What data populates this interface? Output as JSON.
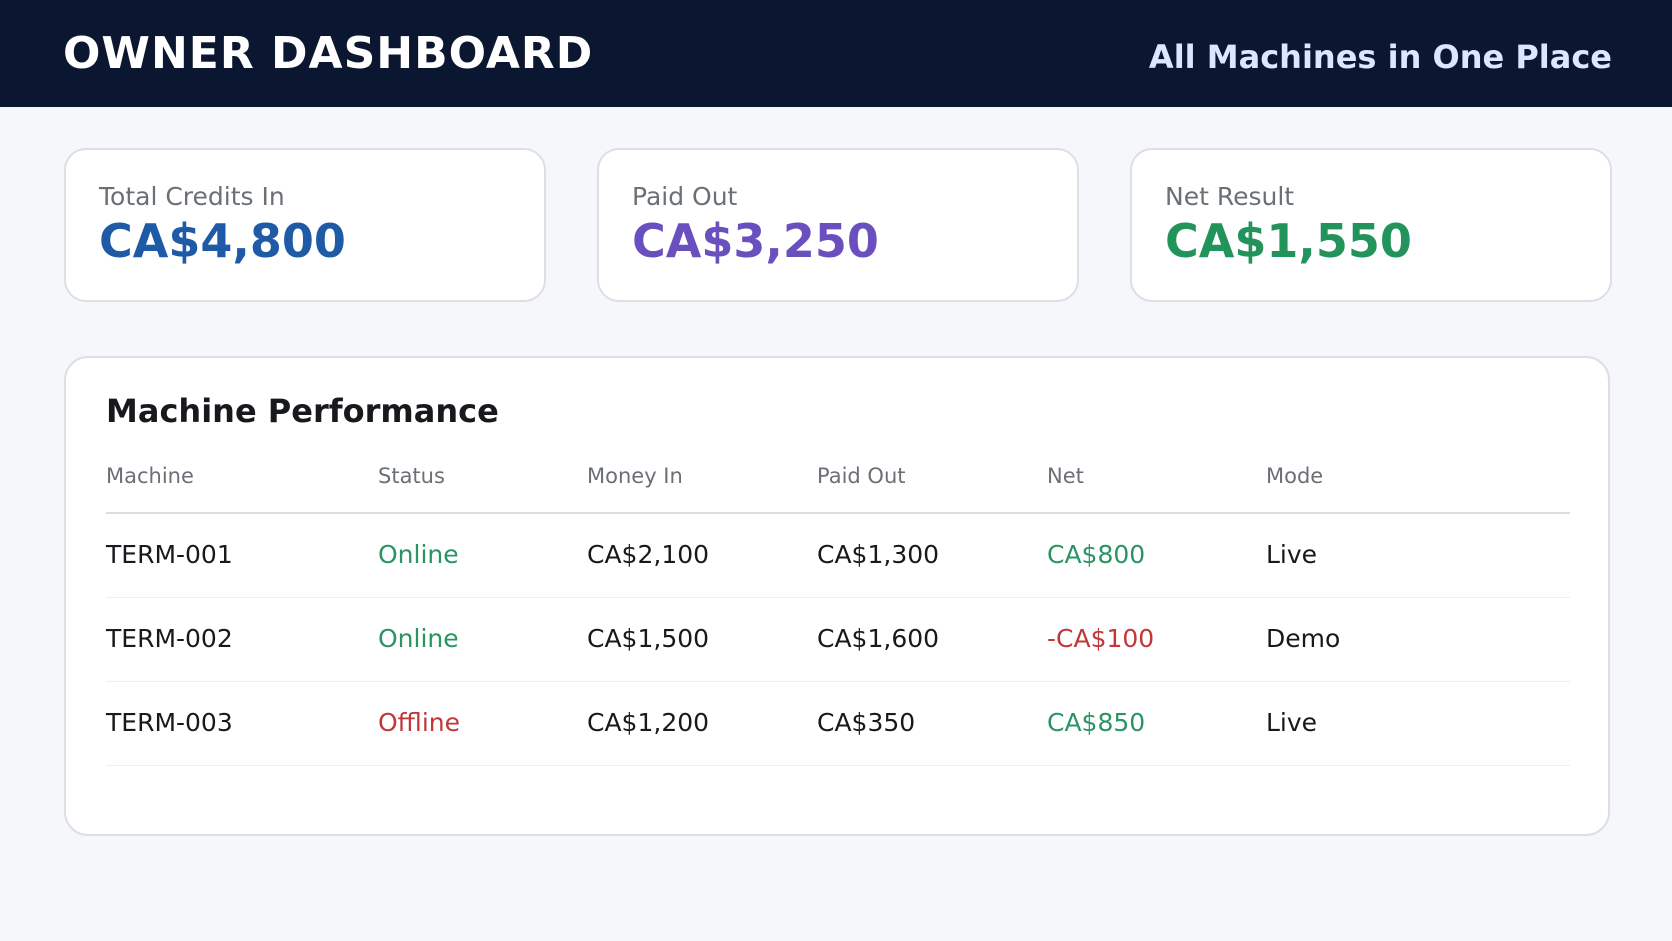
{
  "header": {
    "title": "OWNER DASHBOARD",
    "subtitle": "All Machines in One Place"
  },
  "stats": [
    {
      "label": "Total Credits In",
      "value": "CA$4,800",
      "color": "#1f5aa6"
    },
    {
      "label": "Paid Out",
      "value": "CA$3,250",
      "color": "#6a4fbf"
    },
    {
      "label": "Net Result",
      "value": "CA$1,550",
      "color": "#22935b"
    }
  ],
  "panel": {
    "title": "Machine Performance",
    "columns": [
      "Machine",
      "Status",
      "Money In",
      "Paid Out",
      "Net",
      "Mode"
    ],
    "rows": [
      {
        "machine": "TERM-001",
        "status": "Online",
        "money_in": "CA$2,100",
        "paid_out": "CA$1,300",
        "net": "CA$800",
        "mode": "Live"
      },
      {
        "machine": "TERM-002",
        "status": "Online",
        "money_in": "CA$1,500",
        "paid_out": "CA$1,600",
        "net": "-CA$100",
        "mode": "Demo"
      },
      {
        "machine": "TERM-003",
        "status": "Offline",
        "money_in": "CA$1,200",
        "paid_out": "CA$350",
        "net": "CA$850",
        "mode": "Live"
      }
    ]
  },
  "colors": {
    "positive": "#2a9563",
    "negative": "#c0383a",
    "header_bg": "#0b1730"
  }
}
